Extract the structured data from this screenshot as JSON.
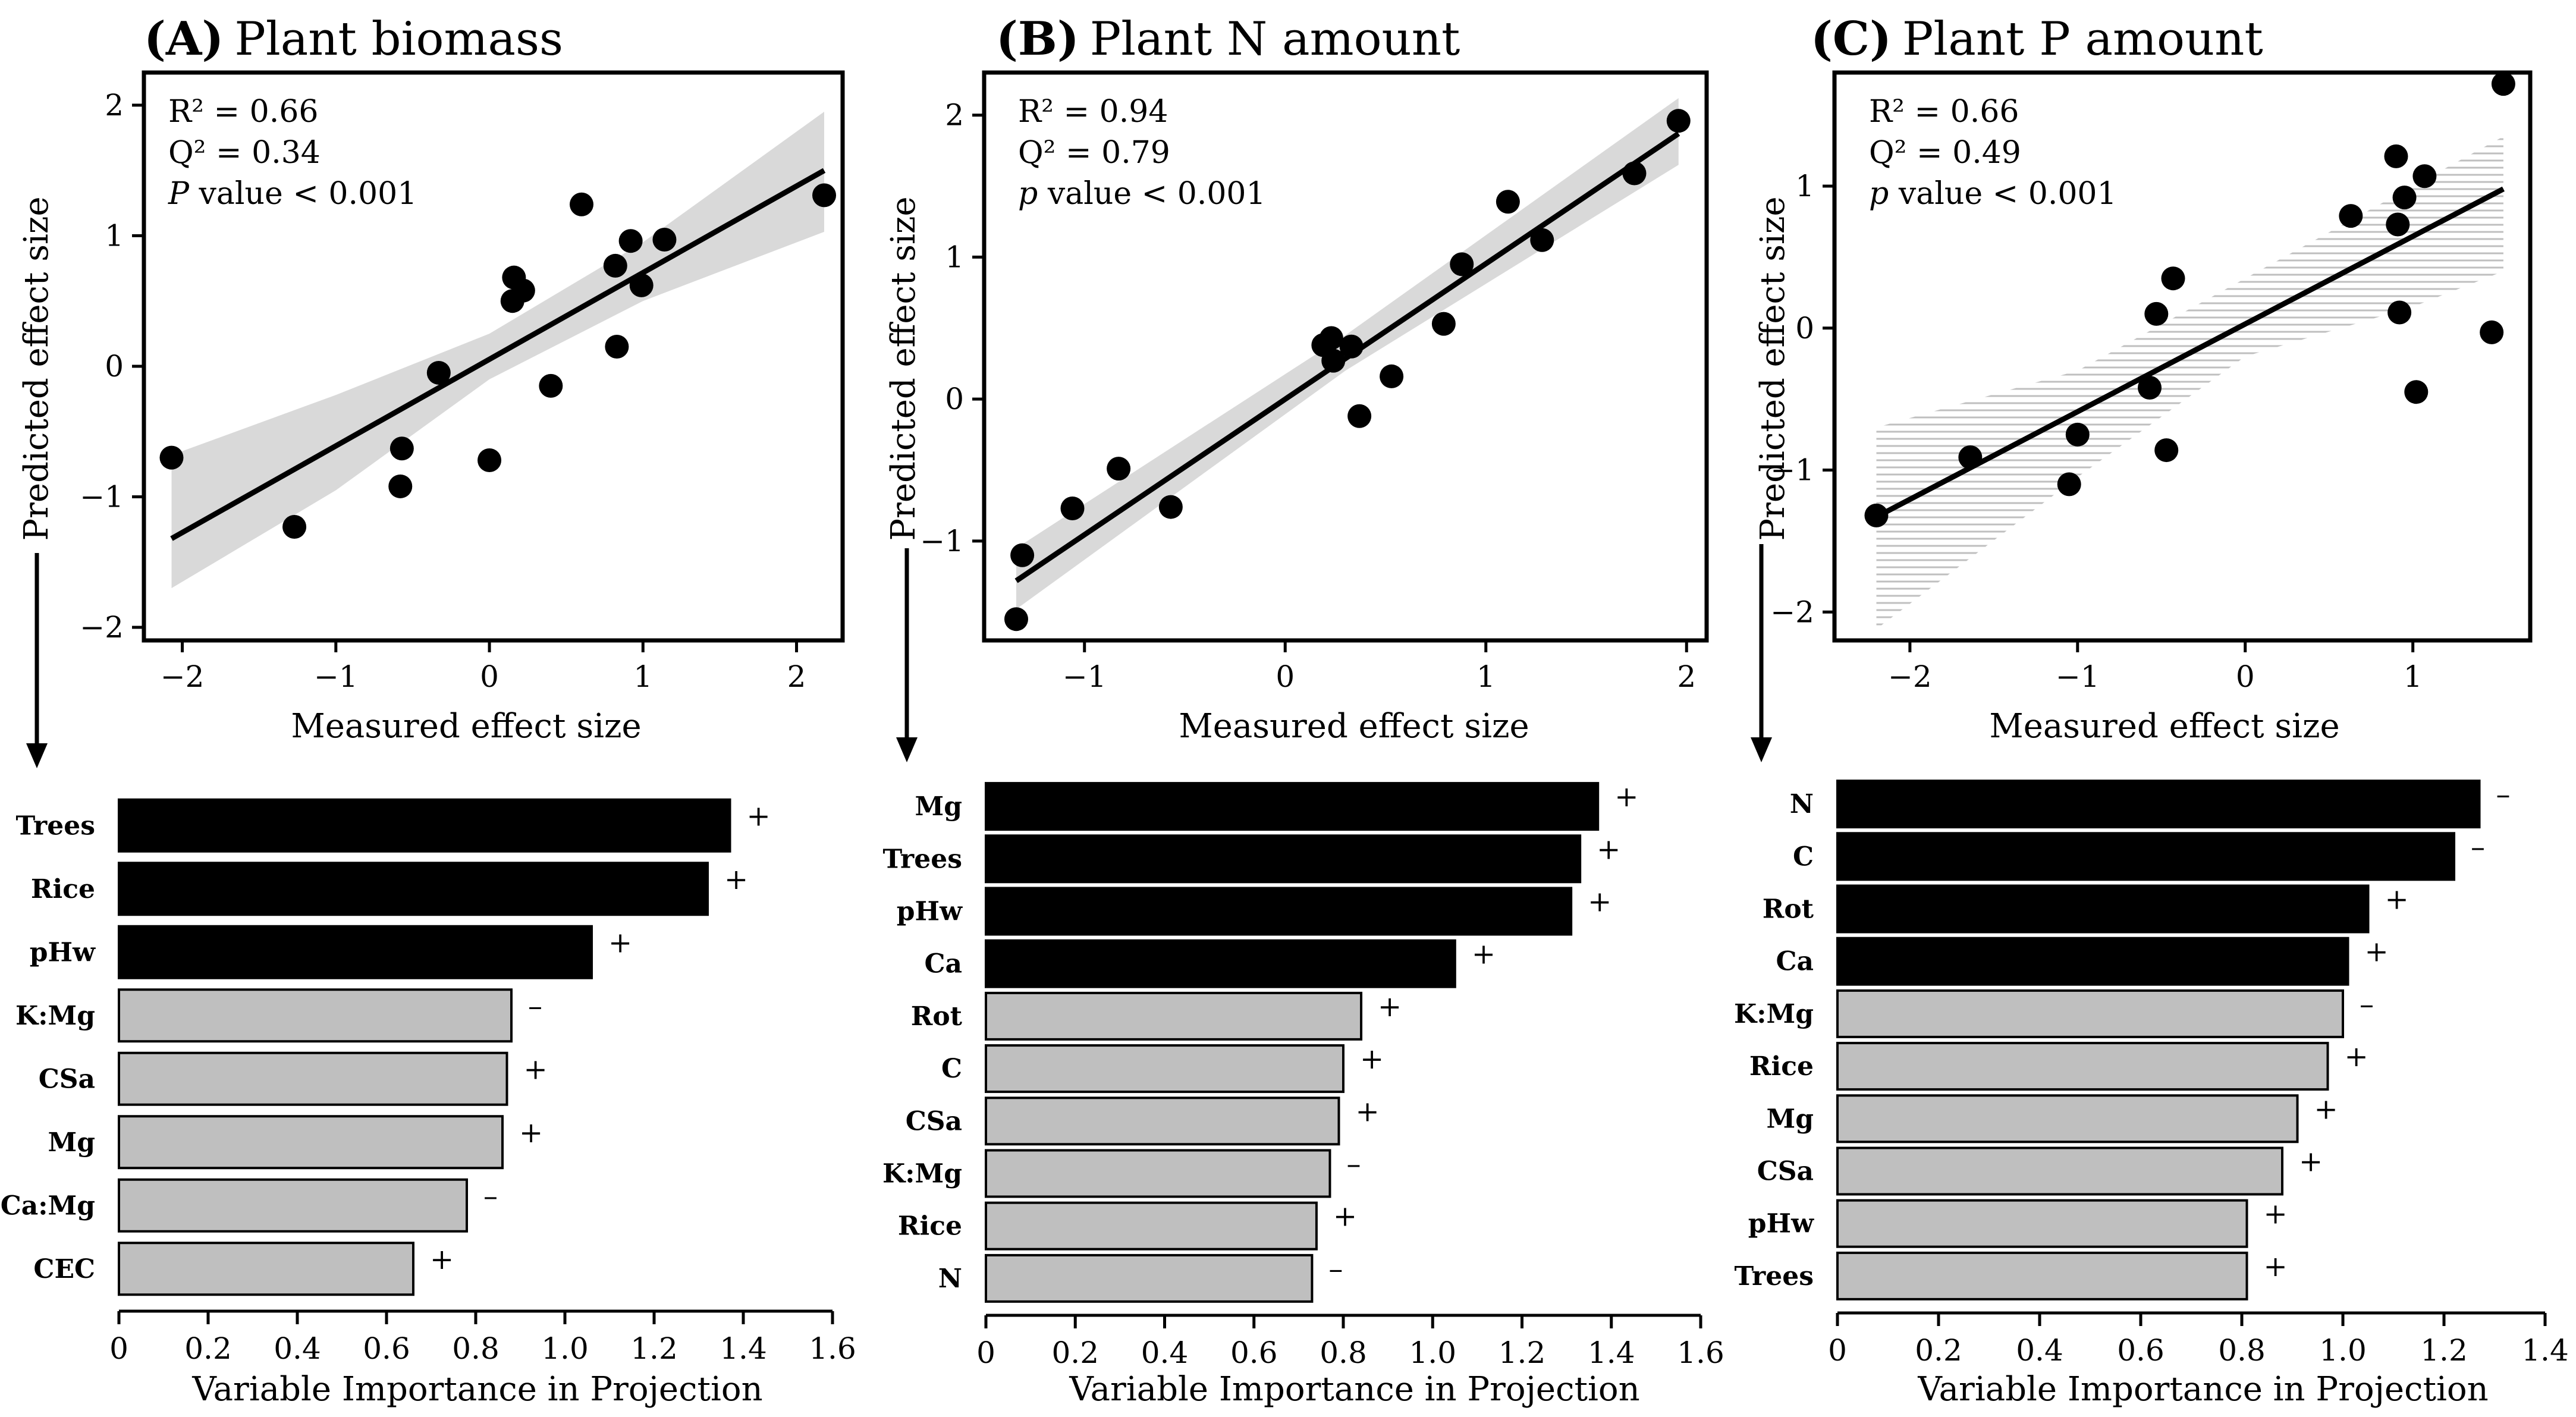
{
  "panels": [
    {
      "title_prefix": "(A)",
      "title_text": "Plant biomass",
      "stats": {
        "r2": "R² = 0.66",
        "q2": "Q² = 0.34",
        "p_italic": "P",
        "p_rest": " value < 0.001"
      },
      "scatter_xlabel": "Measured effect size",
      "scatter_ylabel": "Predicted effect size",
      "bar_xlabel": "Variable Importance in Projection"
    },
    {
      "title_prefix": "(B)",
      "title_text": "Plant N amount",
      "stats": {
        "r2": "R² = 0.94",
        "q2": "Q² = 0.79",
        "p_italic": "p",
        "p_rest": " value < 0.001"
      },
      "scatter_xlabel": "Measured effect size",
      "scatter_ylabel": "Predicted effect size",
      "bar_xlabel": "Variable Importance in Projection"
    },
    {
      "title_prefix": "(C)",
      "title_text": "Plant P amount",
      "stats": {
        "r2": "R² = 0.66",
        "q2": "Q² = 0.49",
        "p_italic": "p",
        "p_rest": " value < 0.001"
      },
      "scatter_xlabel": "Measured effect size",
      "scatter_ylabel": "Predicted effect size",
      "bar_xlabel": "Variable Importance in Projection"
    }
  ],
  "colors": {
    "point": "#000000",
    "fit_line": "#000000",
    "band": "#d9d9d9",
    "band_hatch": "#bfbfbf",
    "bar_important": "#000000",
    "bar_other": "#bfbfbf"
  },
  "chart_data": [
    {
      "type": "scatter",
      "panel": "A",
      "xlim": [
        -2.25,
        2.3
      ],
      "ylim": [
        -2.1,
        2.25
      ],
      "xticks": [
        -2,
        -1,
        0,
        1,
        2
      ],
      "yticks": [
        -2,
        -1,
        0,
        1,
        2
      ],
      "band_style": "solid",
      "points": [
        [
          -2.07,
          -0.7
        ],
        [
          -1.27,
          -1.23
        ],
        [
          -0.57,
          -0.63
        ],
        [
          -0.58,
          -0.92
        ],
        [
          -0.33,
          -0.05
        ],
        [
          0.0,
          -0.72
        ],
        [
          0.15,
          0.5
        ],
        [
          0.16,
          0.68
        ],
        [
          0.22,
          0.58
        ],
        [
          0.4,
          -0.15
        ],
        [
          0.6,
          1.24
        ],
        [
          0.82,
          0.77
        ],
        [
          0.83,
          0.15
        ],
        [
          0.92,
          0.96
        ],
        [
          0.99,
          0.62
        ],
        [
          1.14,
          0.97
        ],
        [
          2.18,
          1.31
        ]
      ],
      "fit": {
        "x": [
          -2.07,
          2.18
        ],
        "y": [
          -1.32,
          1.5
        ]
      },
      "band": {
        "x": [
          -2.07,
          -1.0,
          0.0,
          1.0,
          2.18
        ],
        "lower": [
          -1.7,
          -0.95,
          -0.1,
          0.5,
          1.03
        ],
        "upper": [
          -0.68,
          -0.22,
          0.25,
          0.95,
          1.95
        ]
      }
    },
    {
      "type": "scatter",
      "panel": "B",
      "xlim": [
        -1.5,
        2.1
      ],
      "ylim": [
        -1.7,
        2.3
      ],
      "xticks": [
        -1,
        0,
        1,
        2
      ],
      "yticks": [
        -1,
        0,
        1,
        2
      ],
      "band_style": "solid",
      "points": [
        [
          -1.34,
          -1.55
        ],
        [
          -1.31,
          -1.1
        ],
        [
          -1.06,
          -0.77
        ],
        [
          -0.83,
          -0.49
        ],
        [
          -0.57,
          -0.76
        ],
        [
          0.19,
          0.38
        ],
        [
          0.23,
          0.43
        ],
        [
          0.24,
          0.27
        ],
        [
          0.33,
          0.37
        ],
        [
          0.37,
          -0.12
        ],
        [
          0.53,
          0.16
        ],
        [
          0.79,
          0.53
        ],
        [
          0.88,
          0.95
        ],
        [
          1.11,
          1.39
        ],
        [
          1.28,
          1.12
        ],
        [
          1.74,
          1.59
        ],
        [
          1.96,
          1.96
        ]
      ],
      "fit": {
        "x": [
          -1.34,
          1.96
        ],
        "y": [
          -1.28,
          1.87
        ]
      },
      "band": {
        "x": [
          -1.34,
          0.3,
          1.96
        ],
        "lower": [
          -1.48,
          0.2,
          1.65
        ],
        "upper": [
          -1.05,
          0.45,
          2.12
        ]
      }
    },
    {
      "type": "scatter",
      "panel": "C",
      "xlim": [
        -2.45,
        1.7
      ],
      "ylim": [
        -2.2,
        1.8
      ],
      "xticks": [
        -2,
        -1,
        0,
        1
      ],
      "yticks": [
        -2,
        -1,
        0,
        1
      ],
      "band_style": "hatched",
      "points": [
        [
          -2.2,
          -1.32
        ],
        [
          -1.64,
          -0.91
        ],
        [
          -1.05,
          -1.1
        ],
        [
          -1.0,
          -0.75
        ],
        [
          -0.57,
          -0.42
        ],
        [
          -0.53,
          0.1
        ],
        [
          -0.47,
          -0.86
        ],
        [
          -0.43,
          0.35
        ],
        [
          0.63,
          0.79
        ],
        [
          0.9,
          1.21
        ],
        [
          0.91,
          0.73
        ],
        [
          0.92,
          0.11
        ],
        [
          0.95,
          0.92
        ],
        [
          1.02,
          -0.45
        ],
        [
          1.07,
          1.07
        ],
        [
          1.47,
          -0.03
        ],
        [
          1.54,
          1.72
        ]
      ],
      "fit": {
        "x": [
          -2.2,
          1.54
        ],
        "y": [
          -1.33,
          0.98
        ]
      },
      "band": {
        "x": [
          -2.2,
          -1.0,
          0.0,
          1.0,
          1.54
        ],
        "lower": [
          -2.12,
          -1.05,
          -0.2,
          0.15,
          0.4
        ],
        "upper": [
          -0.7,
          -0.3,
          0.35,
          1.0,
          1.35
        ]
      }
    },
    {
      "type": "bar",
      "orientation": "horizontal",
      "panel": "A",
      "xlim": [
        0,
        1.6
      ],
      "xticks": [
        "0",
        "0.2",
        "0.4",
        "0.6",
        "0.8",
        "1.0",
        "1.2",
        "1.4",
        "1.6"
      ],
      "categories": [
        "Trees",
        "Rice",
        "pHw",
        "K:Mg",
        "CSa",
        "Mg",
        "Ca:Mg",
        "CEC"
      ],
      "values": [
        1.37,
        1.32,
        1.06,
        0.88,
        0.87,
        0.86,
        0.78,
        0.66
      ],
      "signs": [
        "+",
        "+",
        "+",
        "–",
        "+",
        "+",
        "–",
        "+"
      ],
      "important": [
        true,
        true,
        true,
        false,
        false,
        false,
        false,
        false
      ]
    },
    {
      "type": "bar",
      "orientation": "horizontal",
      "panel": "B",
      "xlim": [
        0,
        1.6
      ],
      "xticks": [
        "0",
        "0.2",
        "0.4",
        "0.6",
        "0.8",
        "1.0",
        "1.2",
        "1.4",
        "1.6"
      ],
      "categories": [
        "Mg",
        "Trees",
        "pHw",
        "Ca",
        "Rot",
        "C",
        "CSa",
        "K:Mg",
        "Rice",
        "N"
      ],
      "values": [
        1.37,
        1.33,
        1.31,
        1.05,
        0.84,
        0.8,
        0.79,
        0.77,
        0.74,
        0.73
      ],
      "signs": [
        "+",
        "+",
        "+",
        "+",
        "+",
        "+",
        "+",
        "–",
        "+",
        "–"
      ],
      "important": [
        true,
        true,
        true,
        true,
        false,
        false,
        false,
        false,
        false,
        false
      ]
    },
    {
      "type": "bar",
      "orientation": "horizontal",
      "panel": "C",
      "xlim": [
        0,
        1.4
      ],
      "xticks": [
        "0",
        "0.2",
        "0.4",
        "0.6",
        "0.8",
        "1.0",
        "1.2",
        "1.4"
      ],
      "categories": [
        "N",
        "C",
        "Rot",
        "Ca",
        "K:Mg",
        "Rice",
        "Mg",
        "CSa",
        "pHw",
        "Trees"
      ],
      "values": [
        1.27,
        1.22,
        1.05,
        1.01,
        1.0,
        0.97,
        0.91,
        0.88,
        0.81,
        0.81
      ],
      "signs": [
        "–",
        "–",
        "+",
        "+",
        "–",
        "+",
        "+",
        "+",
        "+",
        "+"
      ],
      "important": [
        true,
        true,
        true,
        true,
        false,
        false,
        false,
        false,
        false,
        false
      ]
    }
  ]
}
